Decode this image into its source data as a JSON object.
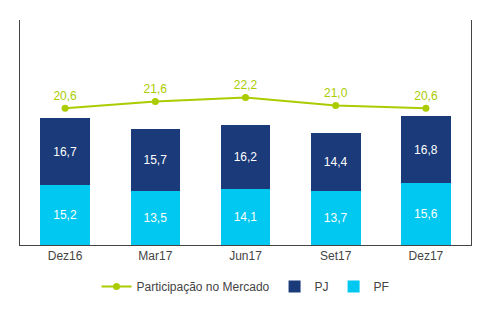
{
  "chart_data": {
    "type": "bar",
    "stacked": true,
    "categories": [
      "Dez16",
      "Mar17",
      "Jun17",
      "Set17",
      "Dez17"
    ],
    "series": [
      {
        "name": "PF",
        "color": "#00c8f0",
        "values": [
          15.2,
          13.5,
          14.1,
          13.7,
          15.6
        ],
        "value_labels": [
          "15,2",
          "13,5",
          "14,1",
          "13,7",
          "15,6"
        ]
      },
      {
        "name": "PJ",
        "color": "#1a3a7a",
        "values": [
          16.7,
          15.7,
          16.2,
          14.4,
          16.8
        ],
        "value_labels": [
          "16,7",
          "15,7",
          "16,2",
          "14,4",
          "16,8"
        ]
      },
      {
        "name": "Participação no Mercado",
        "type": "line",
        "axis": "y2",
        "color": "#aacc00",
        "marker": "circle",
        "values": [
          20.6,
          21.6,
          22.2,
          21.0,
          20.6
        ],
        "value_labels": [
          "20,6",
          "21,6",
          "22,2",
          "21,0",
          "20,6"
        ]
      }
    ],
    "ylim": [
      0,
      56.7
    ],
    "y2lim": [
      0,
      33.87096774193549
    ],
    "data_labels": true,
    "tick_labels": "x",
    "grid": false,
    "legend": "bottom"
  }
}
